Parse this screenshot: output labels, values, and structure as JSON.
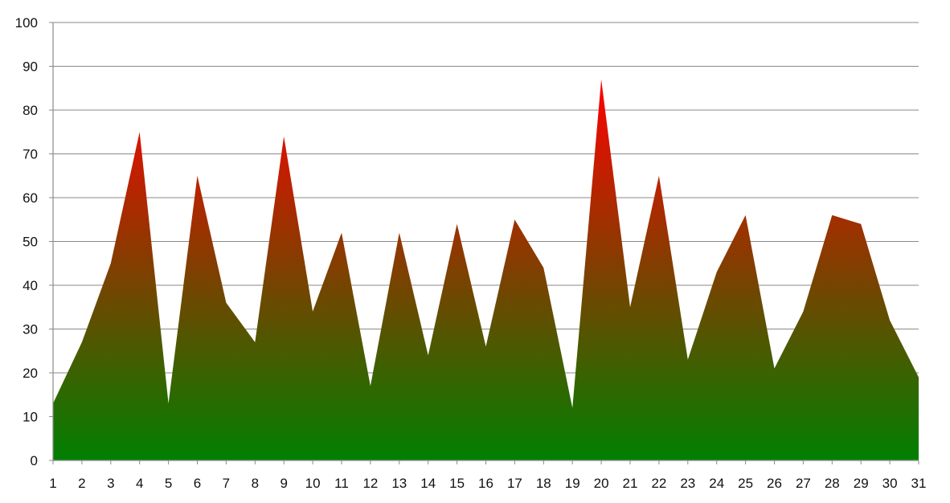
{
  "chart_data": {
    "type": "area",
    "title": "",
    "xlabel": "",
    "ylabel": "",
    "x": [
      1,
      2,
      3,
      4,
      5,
      6,
      7,
      8,
      9,
      10,
      11,
      12,
      13,
      14,
      15,
      16,
      17,
      18,
      19,
      20,
      21,
      22,
      23,
      24,
      25,
      26,
      27,
      28,
      29,
      30,
      31
    ],
    "values": [
      13,
      27,
      45,
      75,
      13,
      65,
      36,
      27,
      74,
      34,
      52,
      17,
      52,
      24,
      54,
      26,
      55,
      44,
      12,
      87,
      35,
      65,
      23,
      43,
      56,
      21,
      34,
      56,
      54,
      32,
      19
    ],
    "ylim": [
      0,
      100
    ],
    "y_ticks": [
      0,
      10,
      20,
      30,
      40,
      50,
      60,
      70,
      80,
      90,
      100
    ],
    "grid": true,
    "legend": "none",
    "gradient": {
      "top": "#ff0000",
      "bottom": "#007f00"
    },
    "colors": {
      "grid": "#8a8a8a",
      "text": "#111111"
    }
  }
}
